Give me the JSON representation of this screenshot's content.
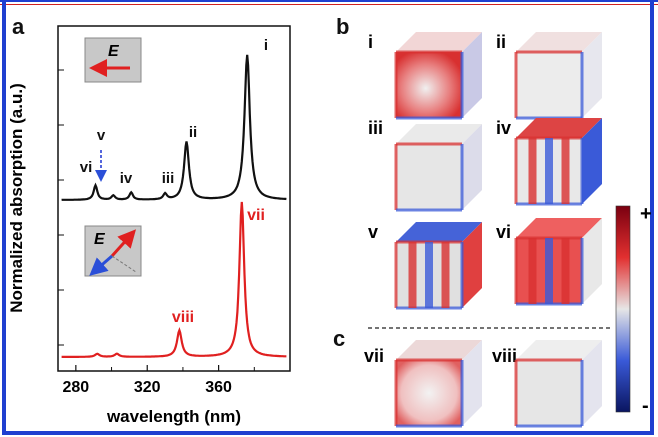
{
  "figure": {
    "panel_a_label": "a",
    "panel_b_label": "b",
    "panel_c_label": "c",
    "field_symbol": "E",
    "colorbar_plus": "+",
    "colorbar_minus": "-",
    "mode_labels_b": [
      "i",
      "ii",
      "iii",
      "iv",
      "v",
      "vi"
    ],
    "mode_labels_c": [
      "vii",
      "viii"
    ]
  },
  "chart_data": {
    "type": "line",
    "xlabel": "wavelength (nm)",
    "ylabel": "Normalized absorption (a.u.)",
    "xlim": [
      270,
      400
    ],
    "x_ticks": [
      280,
      320,
      360
    ],
    "grid": false,
    "series": [
      {
        "color": "#111111",
        "peaks": [
          {
            "x": 291,
            "label": "vi"
          },
          {
            "x": 301,
            "label": "v"
          },
          {
            "x": 311,
            "label": "iv"
          },
          {
            "x": 330,
            "label": "iii"
          },
          {
            "x": 342,
            "label": "ii"
          },
          {
            "x": 376,
            "label": "i"
          }
        ]
      },
      {
        "color": "#e02020",
        "peaks": [
          {
            "x": 338,
            "label": "viii"
          },
          {
            "x": 373,
            "label": "vii"
          }
        ]
      }
    ]
  },
  "colors": {
    "frame": "#1f3fd0",
    "black_curve": "#111111",
    "red_curve": "#e02020",
    "arrow_red": "#e02020",
    "arrow_blue": "#2b4fd8"
  }
}
